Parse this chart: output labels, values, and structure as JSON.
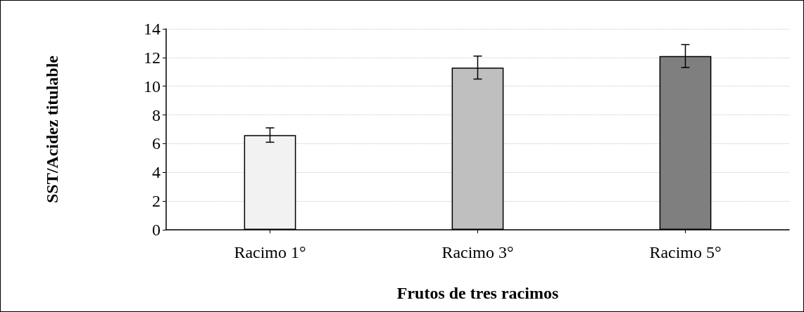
{
  "chart_data": {
    "type": "bar",
    "xlabel": "Frutos de tres racimos",
    "ylabel": "SST/Acidez titulable",
    "categories": [
      "Racimo 1°",
      "Racimo 3°",
      "Racimo 5°"
    ],
    "values": [
      6.6,
      11.3,
      12.1
    ],
    "colors": [
      "#f2f2f2",
      "#bfbfbf",
      "#7f7f7f"
    ],
    "errors": [
      0.5,
      0.8,
      0.8
    ],
    "ylim": [
      0,
      14
    ],
    "yticks": [
      0,
      2,
      4,
      6,
      8,
      10,
      12,
      14
    ],
    "grid": "y"
  }
}
